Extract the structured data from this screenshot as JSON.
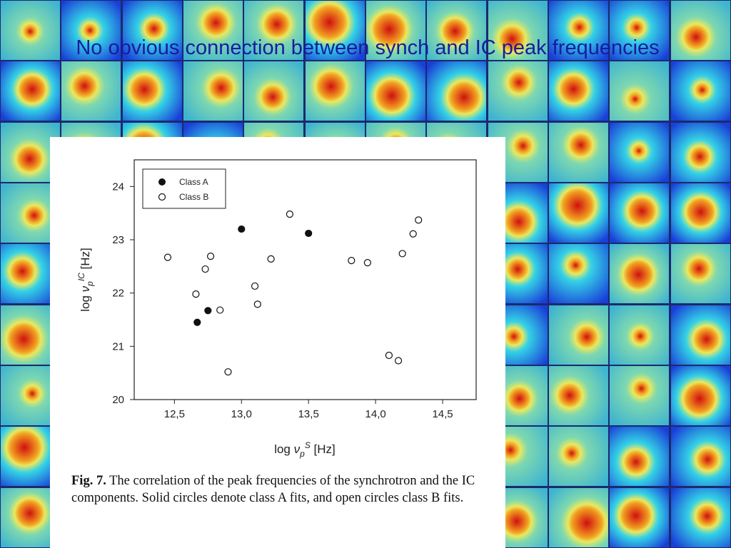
{
  "slide": {
    "title": "No obvious connection between synch and IC peak frequencies"
  },
  "caption": {
    "label": "Fig. 7.",
    "text": "The correlation of the peak frequencies of the synchrotron and the IC components. Solid circles denote class A fits, and open circles class B fits."
  },
  "chart_data": {
    "type": "scatter",
    "xlabel": "log ν_p^S [Hz]",
    "ylabel": "log ν_p^IC [Hz]",
    "xlim": [
      12.2,
      14.75
    ],
    "ylim": [
      20,
      24.5
    ],
    "xticks": [
      "12,5",
      "13,0",
      "13,5",
      "14,0",
      "14,5"
    ],
    "xtick_values": [
      12.5,
      13.0,
      13.5,
      14.0,
      14.5
    ],
    "yticks": [
      "20",
      "21",
      "22",
      "23",
      "24"
    ],
    "ytick_values": [
      20,
      21,
      22,
      23,
      24
    ],
    "grid": false,
    "legend_position": "top-left",
    "series": [
      {
        "name": "Class A",
        "marker": "filled",
        "points": [
          [
            12.67,
            21.45
          ],
          [
            12.75,
            21.67
          ],
          [
            13.0,
            23.2
          ],
          [
            13.5,
            23.12
          ]
        ]
      },
      {
        "name": "Class B",
        "marker": "open",
        "points": [
          [
            12.45,
            22.67
          ],
          [
            12.66,
            21.98
          ],
          [
            12.73,
            22.45
          ],
          [
            12.77,
            22.69
          ],
          [
            12.84,
            21.68
          ],
          [
            12.9,
            20.52
          ],
          [
            13.1,
            22.13
          ],
          [
            13.12,
            21.79
          ],
          [
            13.22,
            22.64
          ],
          [
            13.36,
            23.48
          ],
          [
            13.82,
            22.61
          ],
          [
            13.94,
            22.57
          ],
          [
            14.1,
            20.83
          ],
          [
            14.17,
            20.73
          ],
          [
            14.2,
            22.74
          ],
          [
            14.28,
            23.11
          ],
          [
            14.32,
            23.37
          ]
        ]
      }
    ]
  },
  "colors": {
    "background": "#1a2a6c",
    "title": "#1a1aa0",
    "marker": "#111111"
  }
}
